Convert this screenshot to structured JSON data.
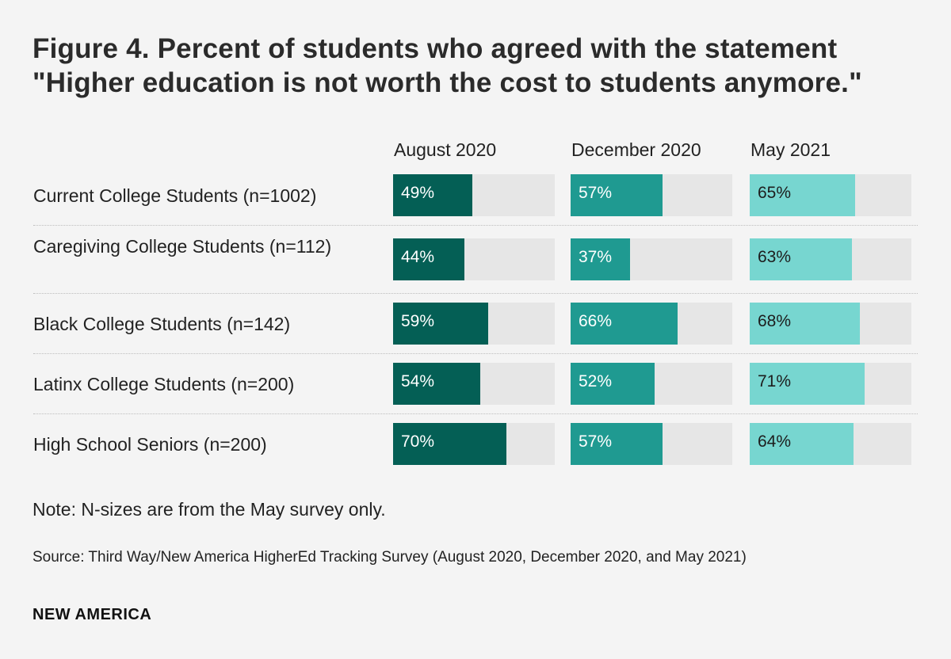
{
  "chart_data": {
    "type": "bar",
    "title": "Figure 4. Percent of students who agreed with the statement \"Higher education is not worth the cost to students anymore.\"",
    "series": [
      {
        "name": "August 2020",
        "color": "#045f55",
        "label_color": "#ffffff",
        "values": [
          49,
          44,
          59,
          54,
          70
        ]
      },
      {
        "name": "December 2020",
        "color": "#1f9a91",
        "label_color": "#ffffff",
        "values": [
          57,
          37,
          66,
          52,
          57
        ]
      },
      {
        "name": "May 2021",
        "color": "#77d6d0",
        "label_color": "#1d1d1d",
        "values": [
          65,
          63,
          68,
          71,
          64
        ]
      }
    ],
    "categories": [
      "Current College Students (n=1002)",
      "Caregiving College Students (n=112)",
      "Black College Students (n=142)",
      "Latinx College Students (n=200)",
      "High School Seniors (n=200)"
    ],
    "value_labels": [
      [
        "49%",
        "44%",
        "59%",
        "54%",
        "70%"
      ],
      [
        "57%",
        "37%",
        "66%",
        "52%",
        "57%"
      ],
      [
        "65%",
        "63%",
        "68%",
        "71%",
        "64%"
      ]
    ],
    "xlim": [
      0,
      100
    ],
    "track_color": "#e6e6e6"
  },
  "note": "Note: N-sizes are from the May survey only.",
  "source": "Source: Third Way/New America HigherEd Tracking Survey (August 2020, December 2020, and May 2021)",
  "brand": "NEW AMERICA"
}
